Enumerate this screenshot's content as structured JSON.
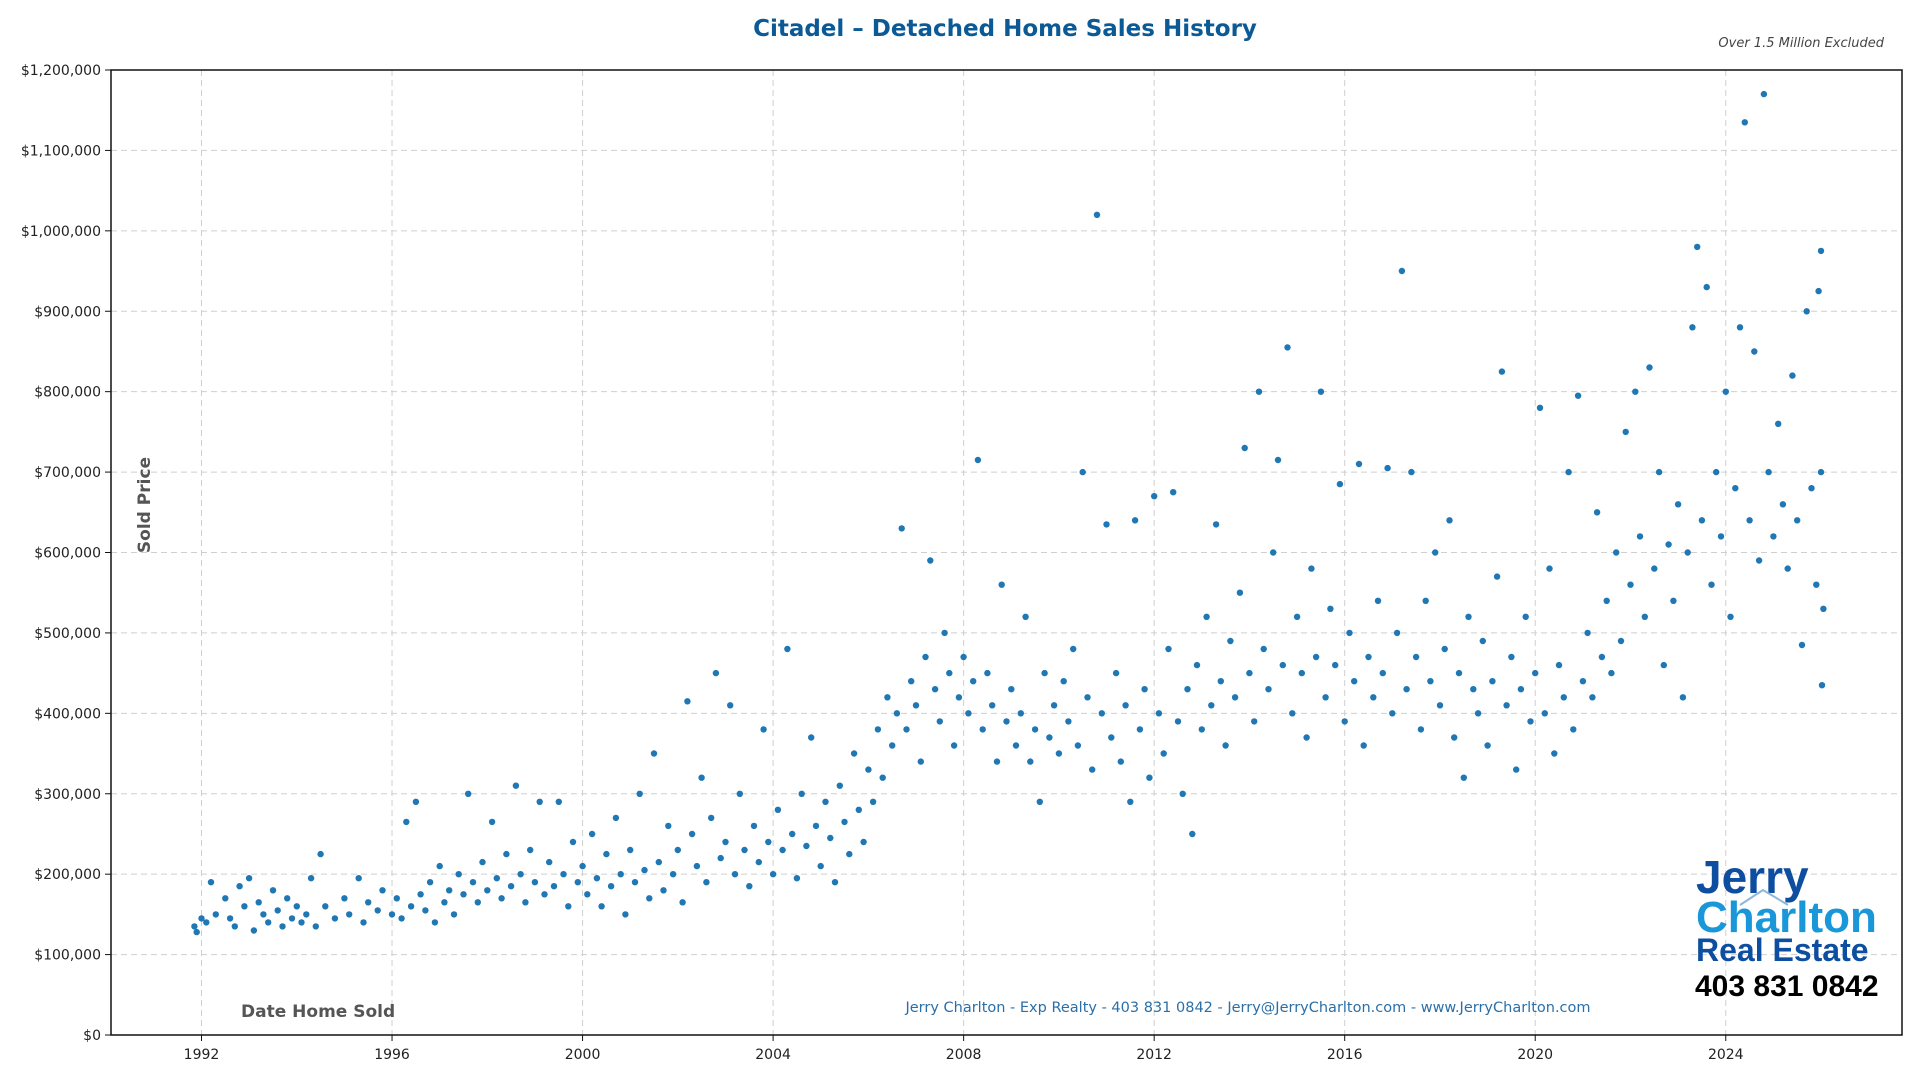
{
  "chart_data": {
    "type": "scatter",
    "title": "Citadel – Detached Home Sales History",
    "note": "Over 1.5 Million Excluded",
    "xlabel": "Date Home Sold",
    "ylabel": "Sold Price",
    "footer": "Jerry Charlton - Exp Realty - 403 831 0842 - Jerry@JerryCharlton.com - www.JerryCharlton.com",
    "xlim": [
      1990.1,
      2027.7
    ],
    "ylim": [
      0,
      1200000
    ],
    "x_ticks": [
      1992,
      1996,
      2000,
      2004,
      2008,
      2012,
      2016,
      2020,
      2024
    ],
    "x_tick_labels": [
      "1992",
      "1996",
      "2000",
      "2004",
      "2008",
      "2012",
      "2016",
      "2020",
      "2024"
    ],
    "y_ticks": [
      0,
      100000,
      200000,
      300000,
      400000,
      500000,
      600000,
      700000,
      800000,
      900000,
      1000000,
      1100000,
      1200000
    ],
    "y_tick_labels": [
      "$0",
      "$100,000",
      "$200,000",
      "$300,000",
      "$400,000",
      "$500,000",
      "$600,000",
      "$700,000",
      "$800,000",
      "$900,000",
      "$1,000,000",
      "$1,100,000",
      "$1,200,000"
    ],
    "grid": true,
    "colors": {
      "points": "#1f77b4",
      "title": "#0b5a96",
      "footer": "#2a6fa8",
      "logo_dark": "#0d4ea0",
      "logo_light": "#1a97d8"
    },
    "points": [
      [
        1991.85,
        135000
      ],
      [
        1991.9,
        128000
      ],
      [
        1992.0,
        145000
      ],
      [
        1992.1,
        140000
      ],
      [
        1992.2,
        190000
      ],
      [
        1992.3,
        150000
      ],
      [
        1992.5,
        170000
      ],
      [
        1992.6,
        145000
      ],
      [
        1992.7,
        135000
      ],
      [
        1992.8,
        185000
      ],
      [
        1992.9,
        160000
      ],
      [
        1993.0,
        195000
      ],
      [
        1993.1,
        130000
      ],
      [
        1993.2,
        165000
      ],
      [
        1993.3,
        150000
      ],
      [
        1993.4,
        140000
      ],
      [
        1993.5,
        180000
      ],
      [
        1993.6,
        155000
      ],
      [
        1993.7,
        135000
      ],
      [
        1993.8,
        170000
      ],
      [
        1993.9,
        145000
      ],
      [
        1994.0,
        160000
      ],
      [
        1994.1,
        140000
      ],
      [
        1994.2,
        150000
      ],
      [
        1994.3,
        195000
      ],
      [
        1994.4,
        135000
      ],
      [
        1994.5,
        225000
      ],
      [
        1994.6,
        160000
      ],
      [
        1994.8,
        145000
      ],
      [
        1995.0,
        170000
      ],
      [
        1995.1,
        150000
      ],
      [
        1995.3,
        195000
      ],
      [
        1995.4,
        140000
      ],
      [
        1995.5,
        165000
      ],
      [
        1995.7,
        155000
      ],
      [
        1995.8,
        180000
      ],
      [
        1996.0,
        150000
      ],
      [
        1996.1,
        170000
      ],
      [
        1996.2,
        145000
      ],
      [
        1996.3,
        265000
      ],
      [
        1996.4,
        160000
      ],
      [
        1996.5,
        290000
      ],
      [
        1996.6,
        175000
      ],
      [
        1996.7,
        155000
      ],
      [
        1996.8,
        190000
      ],
      [
        1996.9,
        140000
      ],
      [
        1997.0,
        210000
      ],
      [
        1997.1,
        165000
      ],
      [
        1997.2,
        180000
      ],
      [
        1997.3,
        150000
      ],
      [
        1997.4,
        200000
      ],
      [
        1997.5,
        175000
      ],
      [
        1997.6,
        300000
      ],
      [
        1997.7,
        190000
      ],
      [
        1997.8,
        165000
      ],
      [
        1997.9,
        215000
      ],
      [
        1998.0,
        180000
      ],
      [
        1998.1,
        265000
      ],
      [
        1998.2,
        195000
      ],
      [
        1998.3,
        170000
      ],
      [
        1998.4,
        225000
      ],
      [
        1998.5,
        185000
      ],
      [
        1998.6,
        310000
      ],
      [
        1998.7,
        200000
      ],
      [
        1998.8,
        165000
      ],
      [
        1998.9,
        230000
      ],
      [
        1999.0,
        190000
      ],
      [
        1999.1,
        290000
      ],
      [
        1999.2,
        175000
      ],
      [
        1999.3,
        215000
      ],
      [
        1999.4,
        185000
      ],
      [
        1999.5,
        290000
      ],
      [
        1999.6,
        200000
      ],
      [
        1999.7,
        160000
      ],
      [
        1999.8,
        240000
      ],
      [
        1999.9,
        190000
      ],
      [
        2000.0,
        210000
      ],
      [
        2000.1,
        175000
      ],
      [
        2000.2,
        250000
      ],
      [
        2000.3,
        195000
      ],
      [
        2000.4,
        160000
      ],
      [
        2000.5,
        225000
      ],
      [
        2000.6,
        185000
      ],
      [
        2000.7,
        270000
      ],
      [
        2000.8,
        200000
      ],
      [
        2000.9,
        150000
      ],
      [
        2001.0,
        230000
      ],
      [
        2001.1,
        190000
      ],
      [
        2001.2,
        300000
      ],
      [
        2001.3,
        205000
      ],
      [
        2001.4,
        170000
      ],
      [
        2001.5,
        350000
      ],
      [
        2001.6,
        215000
      ],
      [
        2001.7,
        180000
      ],
      [
        2001.8,
        260000
      ],
      [
        2001.9,
        200000
      ],
      [
        2002.0,
        230000
      ],
      [
        2002.1,
        165000
      ],
      [
        2002.2,
        415000
      ],
      [
        2002.3,
        250000
      ],
      [
        2002.4,
        210000
      ],
      [
        2002.5,
        320000
      ],
      [
        2002.6,
        190000
      ],
      [
        2002.7,
        270000
      ],
      [
        2002.8,
        450000
      ],
      [
        2002.9,
        220000
      ],
      [
        2003.0,
        240000
      ],
      [
        2003.1,
        410000
      ],
      [
        2003.2,
        200000
      ],
      [
        2003.3,
        300000
      ],
      [
        2003.4,
        230000
      ],
      [
        2003.5,
        185000
      ],
      [
        2003.6,
        260000
      ],
      [
        2003.7,
        215000
      ],
      [
        2003.8,
        380000
      ],
      [
        2003.9,
        240000
      ],
      [
        2004.0,
        200000
      ],
      [
        2004.1,
        280000
      ],
      [
        2004.2,
        230000
      ],
      [
        2004.3,
        480000
      ],
      [
        2004.4,
        250000
      ],
      [
        2004.5,
        195000
      ],
      [
        2004.6,
        300000
      ],
      [
        2004.7,
        235000
      ],
      [
        2004.8,
        370000
      ],
      [
        2004.9,
        260000
      ],
      [
        2005.0,
        210000
      ],
      [
        2005.1,
        290000
      ],
      [
        2005.2,
        245000
      ],
      [
        2005.3,
        190000
      ],
      [
        2005.4,
        310000
      ],
      [
        2005.5,
        265000
      ],
      [
        2005.6,
        225000
      ],
      [
        2005.7,
        350000
      ],
      [
        2005.8,
        280000
      ],
      [
        2005.9,
        240000
      ],
      [
        2006.0,
        330000
      ],
      [
        2006.1,
        290000
      ],
      [
        2006.2,
        380000
      ],
      [
        2006.3,
        320000
      ],
      [
        2006.4,
        420000
      ],
      [
        2006.5,
        360000
      ],
      [
        2006.6,
        400000
      ],
      [
        2006.7,
        630000
      ],
      [
        2006.8,
        380000
      ],
      [
        2006.9,
        440000
      ],
      [
        2007.0,
        410000
      ],
      [
        2007.1,
        340000
      ],
      [
        2007.2,
        470000
      ],
      [
        2007.3,
        590000
      ],
      [
        2007.4,
        430000
      ],
      [
        2007.5,
        390000
      ],
      [
        2007.6,
        500000
      ],
      [
        2007.7,
        450000
      ],
      [
        2007.8,
        360000
      ],
      [
        2007.9,
        420000
      ],
      [
        2008.0,
        470000
      ],
      [
        2008.1,
        400000
      ],
      [
        2008.2,
        440000
      ],
      [
        2008.3,
        715000
      ],
      [
        2008.4,
        380000
      ],
      [
        2008.5,
        450000
      ],
      [
        2008.6,
        410000
      ],
      [
        2008.7,
        340000
      ],
      [
        2008.8,
        560000
      ],
      [
        2008.9,
        390000
      ],
      [
        2009.0,
        430000
      ],
      [
        2009.1,
        360000
      ],
      [
        2009.2,
        400000
      ],
      [
        2009.3,
        520000
      ],
      [
        2009.4,
        340000
      ],
      [
        2009.5,
        380000
      ],
      [
        2009.6,
        290000
      ],
      [
        2009.7,
        450000
      ],
      [
        2009.8,
        370000
      ],
      [
        2009.9,
        410000
      ],
      [
        2010.0,
        350000
      ],
      [
        2010.1,
        440000
      ],
      [
        2010.2,
        390000
      ],
      [
        2010.3,
        480000
      ],
      [
        2010.4,
        360000
      ],
      [
        2010.5,
        700000
      ],
      [
        2010.6,
        420000
      ],
      [
        2010.7,
        330000
      ],
      [
        2010.8,
        1020000
      ],
      [
        2010.9,
        400000
      ],
      [
        2011.0,
        635000
      ],
      [
        2011.1,
        370000
      ],
      [
        2011.2,
        450000
      ],
      [
        2011.3,
        340000
      ],
      [
        2011.4,
        410000
      ],
      [
        2011.5,
        290000
      ],
      [
        2011.6,
        640000
      ],
      [
        2011.7,
        380000
      ],
      [
        2011.8,
        430000
      ],
      [
        2011.9,
        320000
      ],
      [
        2012.0,
        670000
      ],
      [
        2012.1,
        400000
      ],
      [
        2012.2,
        350000
      ],
      [
        2012.3,
        480000
      ],
      [
        2012.4,
        675000
      ],
      [
        2012.5,
        390000
      ],
      [
        2012.6,
        300000
      ],
      [
        2012.7,
        430000
      ],
      [
        2012.8,
        250000
      ],
      [
        2012.9,
        460000
      ],
      [
        2013.0,
        380000
      ],
      [
        2013.1,
        520000
      ],
      [
        2013.2,
        410000
      ],
      [
        2013.3,
        635000
      ],
      [
        2013.4,
        440000
      ],
      [
        2013.5,
        360000
      ],
      [
        2013.6,
        490000
      ],
      [
        2013.7,
        420000
      ],
      [
        2013.8,
        550000
      ],
      [
        2013.9,
        730000
      ],
      [
        2014.0,
        450000
      ],
      [
        2014.1,
        390000
      ],
      [
        2014.2,
        800000
      ],
      [
        2014.3,
        480000
      ],
      [
        2014.4,
        430000
      ],
      [
        2014.5,
        600000
      ],
      [
        2014.6,
        715000
      ],
      [
        2014.7,
        460000
      ],
      [
        2014.8,
        855000
      ],
      [
        2014.9,
        400000
      ],
      [
        2015.0,
        520000
      ],
      [
        2015.1,
        450000
      ],
      [
        2015.2,
        370000
      ],
      [
        2015.3,
        580000
      ],
      [
        2015.4,
        470000
      ],
      [
        2015.5,
        800000
      ],
      [
        2015.6,
        420000
      ],
      [
        2015.7,
        530000
      ],
      [
        2015.8,
        460000
      ],
      [
        2015.9,
        685000
      ],
      [
        2016.0,
        390000
      ],
      [
        2016.1,
        500000
      ],
      [
        2016.2,
        440000
      ],
      [
        2016.3,
        710000
      ],
      [
        2016.4,
        360000
      ],
      [
        2016.5,
        470000
      ],
      [
        2016.6,
        420000
      ],
      [
        2016.7,
        540000
      ],
      [
        2016.8,
        450000
      ],
      [
        2016.9,
        705000
      ],
      [
        2017.0,
        400000
      ],
      [
        2017.1,
        500000
      ],
      [
        2017.2,
        950000
      ],
      [
        2017.3,
        430000
      ],
      [
        2017.4,
        700000
      ],
      [
        2017.5,
        470000
      ],
      [
        2017.6,
        380000
      ],
      [
        2017.7,
        540000
      ],
      [
        2017.8,
        440000
      ],
      [
        2017.9,
        600000
      ],
      [
        2018.0,
        410000
      ],
      [
        2018.1,
        480000
      ],
      [
        2018.2,
        640000
      ],
      [
        2018.3,
        370000
      ],
      [
        2018.4,
        450000
      ],
      [
        2018.5,
        320000
      ],
      [
        2018.6,
        520000
      ],
      [
        2018.7,
        430000
      ],
      [
        2018.8,
        400000
      ],
      [
        2018.9,
        490000
      ],
      [
        2019.0,
        360000
      ],
      [
        2019.1,
        440000
      ],
      [
        2019.2,
        570000
      ],
      [
        2019.3,
        825000
      ],
      [
        2019.4,
        410000
      ],
      [
        2019.5,
        470000
      ],
      [
        2019.6,
        330000
      ],
      [
        2019.7,
        430000
      ],
      [
        2019.8,
        520000
      ],
      [
        2019.9,
        390000
      ],
      [
        2020.0,
        450000
      ],
      [
        2020.1,
        780000
      ],
      [
        2020.2,
        400000
      ],
      [
        2020.3,
        580000
      ],
      [
        2020.4,
        350000
      ],
      [
        2020.5,
        460000
      ],
      [
        2020.6,
        420000
      ],
      [
        2020.7,
        700000
      ],
      [
        2020.8,
        380000
      ],
      [
        2020.9,
        795000
      ],
      [
        2021.0,
        440000
      ],
      [
        2021.1,
        500000
      ],
      [
        2021.2,
        420000
      ],
      [
        2021.3,
        650000
      ],
      [
        2021.4,
        470000
      ],
      [
        2021.5,
        540000
      ],
      [
        2021.6,
        450000
      ],
      [
        2021.7,
        600000
      ],
      [
        2021.8,
        490000
      ],
      [
        2021.9,
        750000
      ],
      [
        2022.0,
        560000
      ],
      [
        2022.1,
        800000
      ],
      [
        2022.2,
        620000
      ],
      [
        2022.3,
        520000
      ],
      [
        2022.4,
        830000
      ],
      [
        2022.5,
        580000
      ],
      [
        2022.6,
        700000
      ],
      [
        2022.7,
        460000
      ],
      [
        2022.8,
        610000
      ],
      [
        2022.9,
        540000
      ],
      [
        2023.0,
        660000
      ],
      [
        2023.1,
        420000
      ],
      [
        2023.2,
        600000
      ],
      [
        2023.3,
        880000
      ],
      [
        2023.4,
        980000
      ],
      [
        2023.5,
        640000
      ],
      [
        2023.6,
        930000
      ],
      [
        2023.7,
        560000
      ],
      [
        2023.8,
        700000
      ],
      [
        2023.9,
        620000
      ],
      [
        2024.0,
        800000
      ],
      [
        2024.1,
        520000
      ],
      [
        2024.2,
        680000
      ],
      [
        2024.3,
        880000
      ],
      [
        2024.4,
        1135000
      ],
      [
        2024.5,
        640000
      ],
      [
        2024.6,
        850000
      ],
      [
        2024.7,
        590000
      ],
      [
        2024.8,
        1170000
      ],
      [
        2024.9,
        700000
      ],
      [
        2025.0,
        620000
      ],
      [
        2025.1,
        760000
      ],
      [
        2025.2,
        660000
      ],
      [
        2025.3,
        580000
      ],
      [
        2025.4,
        820000
      ],
      [
        2025.5,
        640000
      ],
      [
        2025.6,
        485000
      ],
      [
        2025.7,
        900000
      ],
      [
        2025.8,
        680000
      ],
      [
        2025.9,
        560000
      ],
      [
        2025.95,
        925000
      ],
      [
        2026.0,
        975000
      ],
      [
        2026.02,
        435000
      ],
      [
        2026.05,
        530000
      ],
      [
        2026.0,
        700000
      ]
    ]
  },
  "logo": {
    "line1": "Jerry",
    "line2": "Charlton",
    "line3": "Real Estate",
    "phone": "403 831 0842"
  }
}
